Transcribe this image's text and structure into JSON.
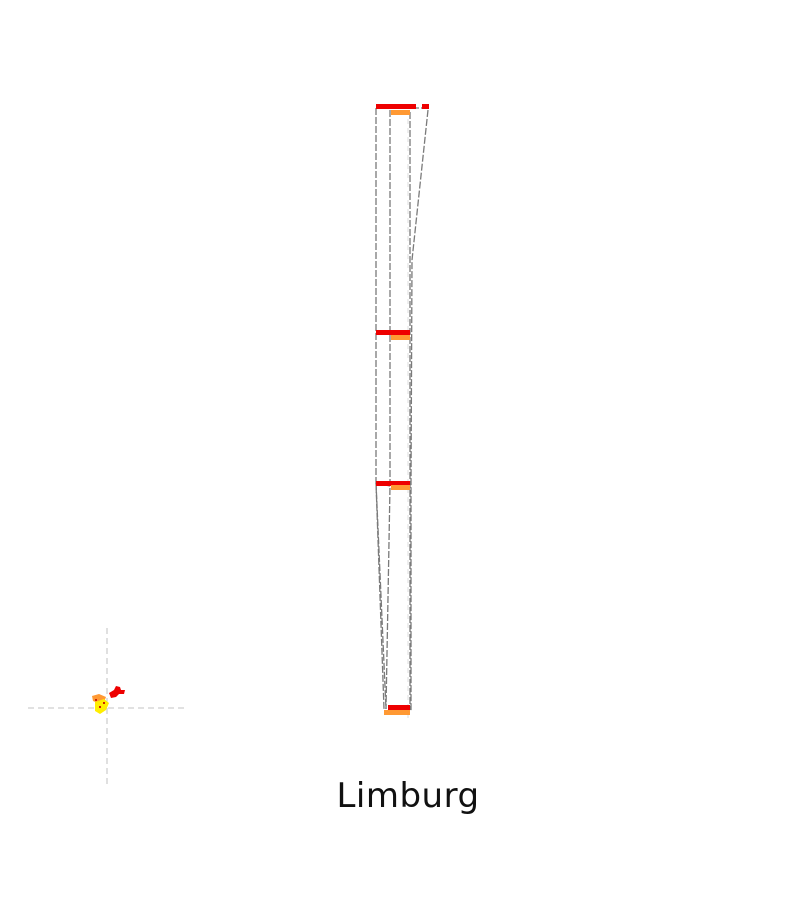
{
  "region": {
    "name": "Limburg"
  },
  "colors": {
    "background": "#ffffff",
    "outline": "#7a7a7a",
    "guide": "#cfcfcf",
    "marker_red": "#ee0000",
    "marker_orange": "#ff9933",
    "marker_yellow": "#ffee00",
    "label": "#111111"
  }
}
